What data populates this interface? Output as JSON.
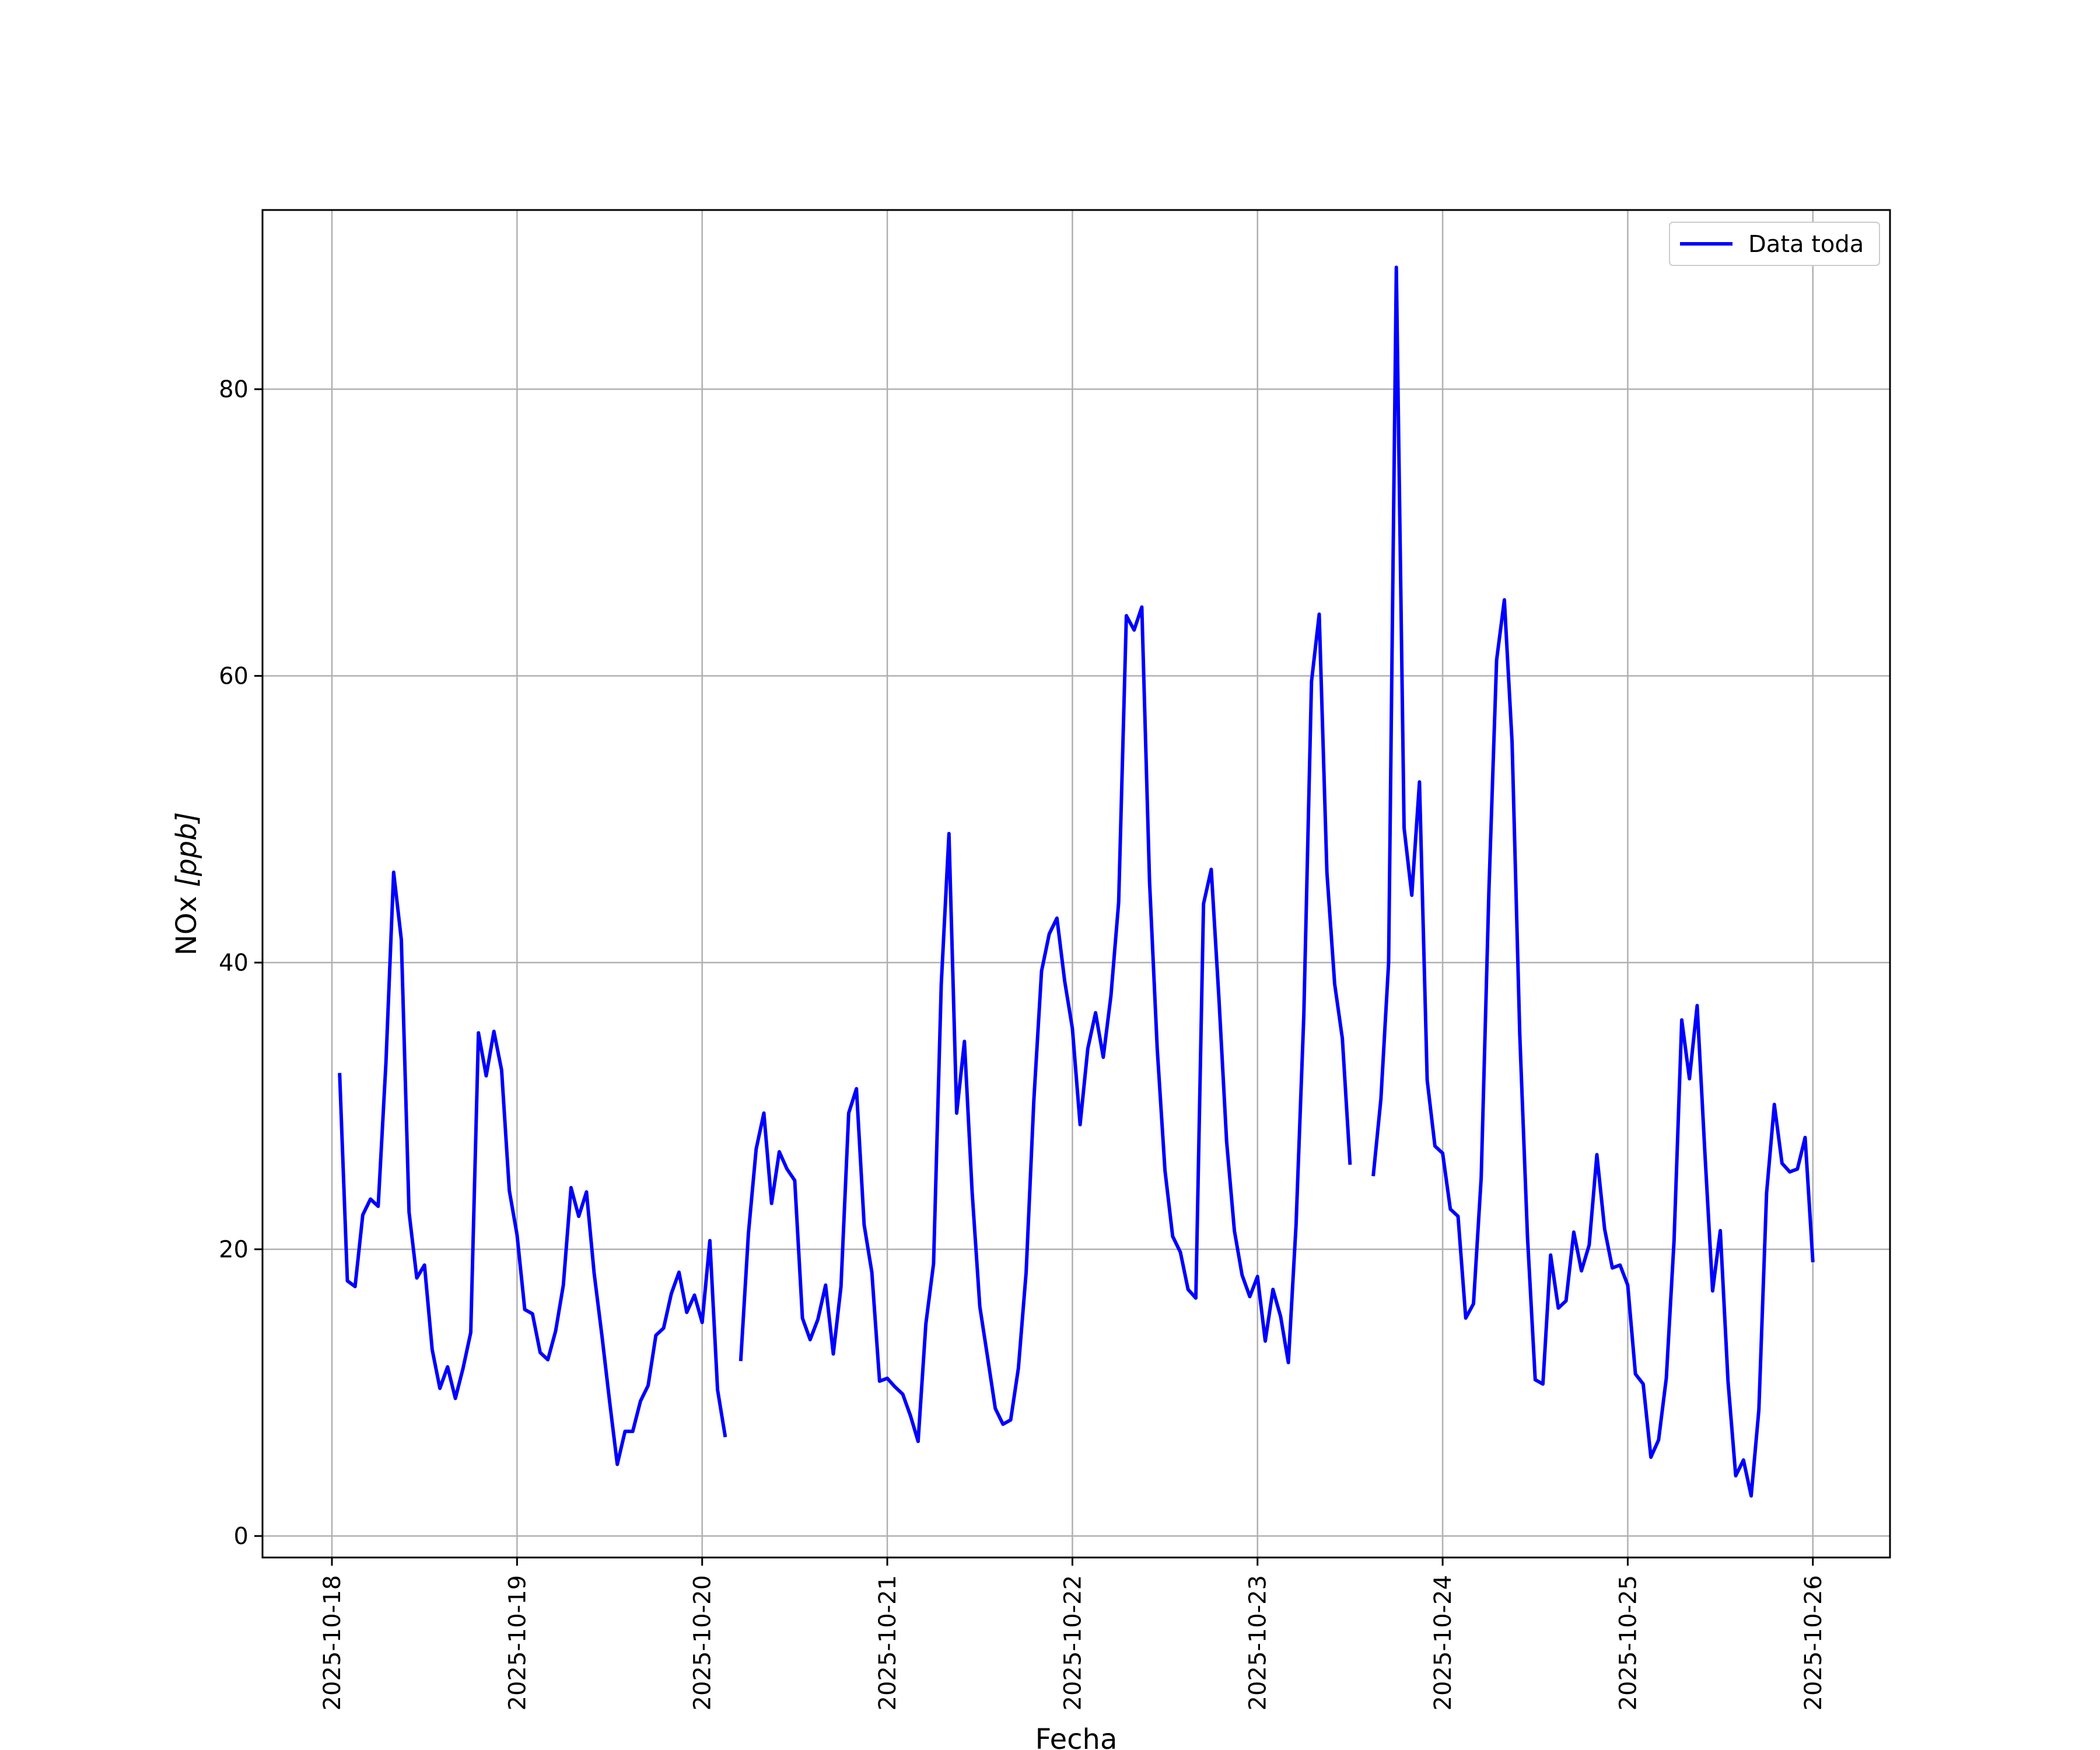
{
  "chart_data": {
    "type": "line",
    "title": "",
    "xlabel": "Fecha",
    "ylabel_main": "NOx ",
    "ylabel_unit": "[ppb]",
    "x_ticks": [
      "2025-10-18",
      "2025-10-19",
      "2025-10-20",
      "2025-10-21",
      "2025-10-22",
      "2025-10-23",
      "2025-10-24",
      "2025-10-25",
      "2025-10-26"
    ],
    "y_ticks": [
      0,
      20,
      40,
      60,
      80
    ],
    "xlim": [
      "2025-10-17 15:00",
      "2025-10-26 10:00"
    ],
    "ylim": [
      -1.5,
      92.5
    ],
    "grid": true,
    "legend_position": "top-right",
    "colors": {
      "line": "#0000ff",
      "grid": "#b0b0b0"
    },
    "series": [
      {
        "name": "Data toda",
        "segments": [
          [
            [
              "2025-10-18 01:00",
              32.3
            ],
            [
              "2025-10-18 02:00",
              17.8
            ],
            [
              "2025-10-18 03:00",
              17.4
            ],
            [
              "2025-10-18 04:00",
              22.4
            ],
            [
              "2025-10-18 05:00",
              23.5
            ],
            [
              "2025-10-18 06:00",
              23.0
            ],
            [
              "2025-10-18 07:00",
              33.0
            ],
            [
              "2025-10-18 08:00",
              46.3
            ],
            [
              "2025-10-18 09:00",
              41.6
            ],
            [
              "2025-10-18 10:00",
              22.6
            ],
            [
              "2025-10-18 11:00",
              18.0
            ],
            [
              "2025-10-18 12:00",
              18.9
            ],
            [
              "2025-10-18 13:00",
              13.0
            ],
            [
              "2025-10-18 14:00",
              10.3
            ],
            [
              "2025-10-18 15:00",
              11.8
            ],
            [
              "2025-10-18 16:00",
              9.6
            ],
            [
              "2025-10-18 17:00",
              11.7
            ],
            [
              "2025-10-18 18:00",
              14.2
            ],
            [
              "2025-10-18 19:00",
              35.1
            ],
            [
              "2025-10-18 20:00",
              32.1
            ],
            [
              "2025-10-18 21:00",
              35.2
            ],
            [
              "2025-10-18 22:00",
              32.5
            ],
            [
              "2025-10-18 23:00",
              24.1
            ],
            [
              "2025-10-19 00:00",
              21.0
            ],
            [
              "2025-10-19 01:00",
              15.8
            ],
            [
              "2025-10-19 02:00",
              15.5
            ],
            [
              "2025-10-19 03:00",
              12.8
            ],
            [
              "2025-10-19 04:00",
              12.3
            ],
            [
              "2025-10-19 05:00",
              14.3
            ],
            [
              "2025-10-19 06:00",
              17.5
            ],
            [
              "2025-10-19 07:00",
              24.3
            ],
            [
              "2025-10-19 08:00",
              22.3
            ],
            [
              "2025-10-19 09:00",
              24.0
            ],
            [
              "2025-10-19 10:00",
              18.3
            ],
            [
              "2025-10-19 11:00",
              14.0
            ],
            [
              "2025-10-19 12:00",
              9.4
            ],
            [
              "2025-10-19 13:00",
              5.0
            ],
            [
              "2025-10-19 14:00",
              7.3
            ],
            [
              "2025-10-19 15:00",
              7.3
            ],
            [
              "2025-10-19 16:00",
              9.4
            ],
            [
              "2025-10-19 17:00",
              10.5
            ],
            [
              "2025-10-19 18:00",
              14.0
            ],
            [
              "2025-10-19 19:00",
              14.5
            ],
            [
              "2025-10-19 20:00",
              16.9
            ],
            [
              "2025-10-19 21:00",
              18.4
            ],
            [
              "2025-10-19 22:00",
              15.6
            ],
            [
              "2025-10-19 23:00",
              16.8
            ],
            [
              "2025-10-20 00:00",
              14.9
            ],
            [
              "2025-10-20 01:00",
              20.6
            ],
            [
              "2025-10-20 02:00",
              10.2
            ],
            [
              "2025-10-20 03:00",
              6.9
            ]
          ],
          [
            [
              "2025-10-20 05:00",
              12.2
            ],
            [
              "2025-10-20 06:00",
              21.1
            ],
            [
              "2025-10-20 07:00",
              27.0
            ],
            [
              "2025-10-20 08:00",
              29.5
            ],
            [
              "2025-10-20 09:00",
              23.2
            ],
            [
              "2025-10-20 10:00",
              26.8
            ],
            [
              "2025-10-20 11:00",
              25.6
            ],
            [
              "2025-10-20 12:00",
              24.8
            ],
            [
              "2025-10-20 13:00",
              15.2
            ],
            [
              "2025-10-20 14:00",
              13.7
            ],
            [
              "2025-10-20 15:00",
              15.1
            ],
            [
              "2025-10-20 16:00",
              17.5
            ],
            [
              "2025-10-20 17:00",
              12.7
            ],
            [
              "2025-10-20 18:00",
              17.4
            ],
            [
              "2025-10-20 19:00",
              29.5
            ],
            [
              "2025-10-20 20:00",
              31.2
            ],
            [
              "2025-10-20 21:00",
              21.7
            ],
            [
              "2025-10-20 22:00",
              18.4
            ],
            [
              "2025-10-20 23:00",
              10.8
            ],
            [
              "2025-10-21 00:00",
              11.0
            ],
            [
              "2025-10-21 01:00",
              10.4
            ],
            [
              "2025-10-21 02:00",
              9.9
            ],
            [
              "2025-10-21 03:00",
              8.4
            ],
            [
              "2025-10-21 04:00",
              6.6
            ],
            [
              "2025-10-21 05:00",
              14.8
            ],
            [
              "2025-10-21 06:00",
              19.0
            ],
            [
              "2025-10-21 07:00",
              38.5
            ],
            [
              "2025-10-21 08:00",
              49.0
            ],
            [
              "2025-10-21 09:00",
              29.5
            ],
            [
              "2025-10-21 10:00",
              34.5
            ],
            [
              "2025-10-21 11:00",
              24.0
            ],
            [
              "2025-10-21 12:00",
              16.0
            ],
            [
              "2025-10-21 13:00",
              12.5
            ],
            [
              "2025-10-21 14:00",
              8.9
            ],
            [
              "2025-10-21 15:00",
              7.8
            ],
            [
              "2025-10-21 16:00",
              8.1
            ],
            [
              "2025-10-21 17:00",
              11.7
            ],
            [
              "2025-10-21 18:00",
              18.4
            ],
            [
              "2025-10-21 19:00",
              30.4
            ],
            [
              "2025-10-21 20:00",
              39.4
            ],
            [
              "2025-10-21 21:00",
              42.0
            ],
            [
              "2025-10-21 22:00",
              43.1
            ],
            [
              "2025-10-21 23:00",
              38.7
            ],
            [
              "2025-10-22 00:00",
              35.4
            ],
            [
              "2025-10-22 01:00",
              28.7
            ],
            [
              "2025-10-22 02:00",
              34.0
            ],
            [
              "2025-10-22 03:00",
              36.5
            ],
            [
              "2025-10-22 04:00",
              33.4
            ],
            [
              "2025-10-22 05:00",
              37.7
            ],
            [
              "2025-10-22 06:00",
              44.2
            ],
            [
              "2025-10-22 07:00",
              64.2
            ],
            [
              "2025-10-22 08:00",
              63.2
            ],
            [
              "2025-10-22 09:00",
              64.8
            ],
            [
              "2025-10-22 10:00",
              45.7
            ],
            [
              "2025-10-22 11:00",
              34.0
            ],
            [
              "2025-10-22 12:00",
              25.5
            ],
            [
              "2025-10-22 13:00",
              20.9
            ],
            [
              "2025-10-22 14:00",
              19.8
            ],
            [
              "2025-10-22 15:00",
              17.2
            ],
            [
              "2025-10-22 16:00",
              16.6
            ],
            [
              "2025-10-22 17:00",
              44.1
            ],
            [
              "2025-10-22 18:00",
              46.5
            ],
            [
              "2025-10-22 19:00",
              37.5
            ],
            [
              "2025-10-22 20:00",
              27.5
            ],
            [
              "2025-10-22 21:00",
              21.3
            ],
            [
              "2025-10-22 22:00",
              18.2
            ],
            [
              "2025-10-22 23:00",
              16.7
            ],
            [
              "2025-10-23 00:00",
              18.1
            ],
            [
              "2025-10-23 01:00",
              13.6
            ],
            [
              "2025-10-23 02:00",
              17.2
            ],
            [
              "2025-10-23 03:00",
              15.3
            ],
            [
              "2025-10-23 04:00",
              12.1
            ],
            [
              "2025-10-23 05:00",
              21.7
            ],
            [
              "2025-10-23 06:00",
              36.3
            ],
            [
              "2025-10-23 07:00",
              59.6
            ],
            [
              "2025-10-23 08:00",
              64.3
            ],
            [
              "2025-10-23 09:00",
              46.3
            ],
            [
              "2025-10-23 10:00",
              38.5
            ],
            [
              "2025-10-23 11:00",
              34.7
            ],
            [
              "2025-10-23 12:00",
              25.9
            ]
          ],
          [
            [
              "2025-10-23 15:00",
              25.1
            ],
            [
              "2025-10-23 16:00",
              30.5
            ],
            [
              "2025-10-23 17:00",
              40.0
            ],
            [
              "2025-10-23 18:00",
              88.5
            ],
            [
              "2025-10-23 19:00",
              49.4
            ],
            [
              "2025-10-23 20:00",
              44.7
            ],
            [
              "2025-10-23 21:00",
              52.6
            ],
            [
              "2025-10-23 22:00",
              31.8
            ],
            [
              "2025-10-23 23:00",
              27.2
            ],
            [
              "2025-10-24 00:00",
              26.7
            ],
            [
              "2025-10-24 01:00",
              22.8
            ],
            [
              "2025-10-24 02:00",
              22.3
            ],
            [
              "2025-10-24 03:00",
              15.2
            ],
            [
              "2025-10-24 04:00",
              16.2
            ],
            [
              "2025-10-24 05:00",
              25.0
            ],
            [
              "2025-10-24 06:00",
              45.0
            ],
            [
              "2025-10-24 07:00",
              61.1
            ],
            [
              "2025-10-24 08:00",
              65.3
            ],
            [
              "2025-10-24 09:00",
              55.4
            ],
            [
              "2025-10-24 10:00",
              35.0
            ],
            [
              "2025-10-24 11:00",
              20.9
            ],
            [
              "2025-10-24 12:00",
              10.9
            ],
            [
              "2025-10-24 13:00",
              10.6
            ],
            [
              "2025-10-24 14:00",
              19.6
            ],
            [
              "2025-10-24 15:00",
              15.9
            ],
            [
              "2025-10-24 16:00",
              16.4
            ],
            [
              "2025-10-24 17:00",
              21.2
            ],
            [
              "2025-10-24 18:00",
              18.5
            ],
            [
              "2025-10-24 19:00",
              20.3
            ],
            [
              "2025-10-24 20:00",
              26.6
            ],
            [
              "2025-10-24 21:00",
              21.4
            ],
            [
              "2025-10-24 22:00",
              18.7
            ],
            [
              "2025-10-24 23:00",
              18.9
            ],
            [
              "2025-10-25 00:00",
              17.5
            ],
            [
              "2025-10-25 01:00",
              11.3
            ],
            [
              "2025-10-25 02:00",
              10.6
            ],
            [
              "2025-10-25 03:00",
              5.5
            ],
            [
              "2025-10-25 04:00",
              6.7
            ],
            [
              "2025-10-25 05:00",
              11.0
            ],
            [
              "2025-10-25 06:00",
              20.6
            ],
            [
              "2025-10-25 07:00",
              36.0
            ],
            [
              "2025-10-25 08:00",
              31.9
            ],
            [
              "2025-10-25 09:00",
              37.0
            ],
            [
              "2025-10-25 10:00",
              26.7
            ],
            [
              "2025-10-25 11:00",
              17.1
            ],
            [
              "2025-10-25 12:00",
              21.3
            ],
            [
              "2025-10-25 13:00",
              10.8
            ],
            [
              "2025-10-25 14:00",
              4.2
            ],
            [
              "2025-10-25 15:00",
              5.3
            ],
            [
              "2025-10-25 16:00",
              2.8
            ],
            [
              "2025-10-25 17:00",
              8.8
            ],
            [
              "2025-10-25 18:00",
              23.9
            ],
            [
              "2025-10-25 19:00",
              30.1
            ],
            [
              "2025-10-25 20:00",
              26.0
            ],
            [
              "2025-10-25 21:00",
              25.4
            ],
            [
              "2025-10-25 22:00",
              25.6
            ],
            [
              "2025-10-25 23:00",
              27.8
            ],
            [
              "2025-10-26 00:00",
              19.1
            ]
          ]
        ]
      }
    ]
  }
}
